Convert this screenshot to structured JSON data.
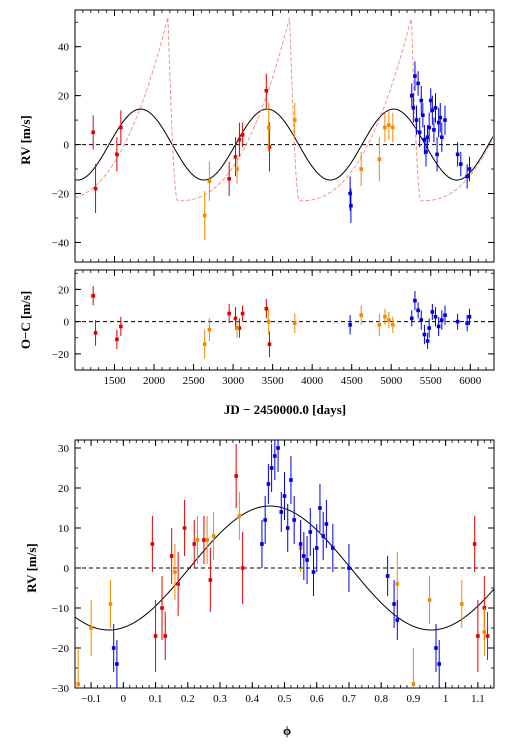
{
  "colors": {
    "red": "#e00000",
    "orange": "#f08a00",
    "blue": "#0000e0",
    "model": "#000000",
    "model2": "#f08a8a"
  },
  "chart_data": [
    {
      "id": "rv-time",
      "type": "scatter",
      "title": "",
      "xlabel": "",
      "ylabel": "RV [m/s]",
      "xlim": [
        1000,
        6300
      ],
      "ylim": [
        -48,
        55
      ],
      "x_ticks": [
        1500,
        2000,
        2500,
        3000,
        3500,
        4000,
        4500,
        5000,
        5500,
        6000
      ],
      "y_ticks": [
        -40,
        -20,
        0,
        20,
        40
      ],
      "tick_labels_x": false,
      "zero_line": "dashed",
      "model_curves": [
        {
          "kind": "sine",
          "amplitude": 14.5,
          "period": 1600,
          "phase_ref": 1830,
          "color": "black",
          "style": "solid"
        },
        {
          "kind": "sawtooth",
          "min": -23,
          "max": 52,
          "period": 1540,
          "peak_at": 2175,
          "color": "pink",
          "style": "dashed"
        }
      ],
      "series": [
        {
          "color": "red",
          "points": [
            [
              1230,
              5,
              7
            ],
            [
              1260,
              -18,
              10
            ],
            [
              1530,
              -4,
              7
            ],
            [
              1580,
              7,
              7
            ],
            [
              2950,
              -14,
              7
            ],
            [
              3030,
              -5,
              8
            ],
            [
              3080,
              2,
              7
            ],
            [
              3120,
              4,
              5
            ],
            [
              3420,
              22,
              7
            ],
            [
              3460,
              -1,
              10
            ]
          ]
        },
        {
          "color": "orange",
          "points": [
            [
              2640,
              -29,
              10
            ],
            [
              2700,
              -15,
              8
            ],
            [
              3050,
              -10,
              6
            ],
            [
              3450,
              7,
              10
            ],
            [
              3780,
              10,
              7
            ],
            [
              4620,
              -10,
              7
            ],
            [
              4850,
              -6,
              9
            ],
            [
              4920,
              7,
              6
            ],
            [
              4970,
              8,
              6
            ],
            [
              5020,
              7,
              6
            ]
          ]
        },
        {
          "color": "blue",
          "points": [
            [
              4480,
              -20,
              7
            ],
            [
              4490,
              -25,
              7
            ],
            [
              5260,
              20,
              5
            ],
            [
              5280,
              15,
              6
            ],
            [
              5300,
              28,
              6
            ],
            [
              5320,
              10,
              6
            ],
            [
              5340,
              25,
              5
            ],
            [
              5360,
              5,
              6
            ],
            [
              5380,
              18,
              6
            ],
            [
              5400,
              12,
              5
            ],
            [
              5420,
              2,
              6
            ],
            [
              5440,
              -3,
              6
            ],
            [
              5460,
              3,
              5
            ],
            [
              5480,
              7,
              6
            ],
            [
              5500,
              18,
              5
            ],
            [
              5520,
              14,
              6
            ],
            [
              5540,
              6,
              5
            ],
            [
              5560,
              15,
              6
            ],
            [
              5580,
              -4,
              7
            ],
            [
              5600,
              9,
              6
            ],
            [
              5620,
              11,
              6
            ],
            [
              5640,
              3,
              6
            ],
            [
              5680,
              10,
              6
            ],
            [
              5840,
              -4,
              5
            ],
            [
              5880,
              -8,
              5
            ],
            [
              5960,
              -13,
              5
            ],
            [
              5990,
              -10,
              5
            ]
          ]
        }
      ]
    },
    {
      "id": "oc-time",
      "type": "scatter",
      "title": "",
      "xlabel": "JD − 2450000.0 [days]",
      "ylabel": "O−C [m/s]",
      "xlim": [
        1000,
        6300
      ],
      "ylim": [
        -30,
        32
      ],
      "x_ticks": [
        1500,
        2000,
        2500,
        3000,
        3500,
        4000,
        4500,
        5000,
        5500,
        6000
      ],
      "y_ticks": [
        -20,
        0,
        20
      ],
      "tick_labels_x": true,
      "zero_line": "dashed",
      "model_curves": [],
      "series": [
        {
          "color": "red",
          "points": [
            [
              1230,
              16,
              6
            ],
            [
              1260,
              -7,
              8
            ],
            [
              1530,
              -11,
              6
            ],
            [
              1580,
              -3,
              6
            ],
            [
              2950,
              5,
              6
            ],
            [
              3030,
              2,
              7
            ],
            [
              3080,
              -4,
              6
            ],
            [
              3120,
              5,
              5
            ],
            [
              3420,
              8,
              6
            ],
            [
              3460,
              -14,
              8
            ]
          ]
        },
        {
          "color": "orange",
          "points": [
            [
              2640,
              -14,
              9
            ],
            [
              2700,
              -5,
              7
            ],
            [
              3050,
              -4,
              6
            ],
            [
              3450,
              0,
              8
            ],
            [
              3780,
              -1,
              6
            ],
            [
              4620,
              4,
              6
            ],
            [
              4850,
              -2,
              7
            ],
            [
              4920,
              3,
              5
            ],
            [
              4970,
              1,
              5
            ],
            [
              5020,
              -2,
              5
            ]
          ]
        },
        {
          "color": "blue",
          "points": [
            [
              4480,
              -2,
              6
            ],
            [
              5260,
              2,
              5
            ],
            [
              5300,
              13,
              6
            ],
            [
              5340,
              7,
              5
            ],
            [
              5380,
              1,
              6
            ],
            [
              5420,
              -8,
              6
            ],
            [
              5460,
              -12,
              5
            ],
            [
              5480,
              -4,
              6
            ],
            [
              5520,
              6,
              5
            ],
            [
              5560,
              3,
              6
            ],
            [
              5600,
              -3,
              6
            ],
            [
              5640,
              1,
              6
            ],
            [
              5680,
              4,
              6
            ],
            [
              5840,
              0,
              5
            ],
            [
              5960,
              -1,
              5
            ],
            [
              5990,
              3,
              5
            ]
          ]
        }
      ]
    },
    {
      "id": "rv-phase",
      "type": "scatter",
      "title": "",
      "xlabel": "ϕ",
      "ylabel": "RV [m/s]",
      "xlim": [
        -0.15,
        1.15
      ],
      "ylim": [
        -30,
        32
      ],
      "x_ticks": [
        -0.1,
        0,
        0.1,
        0.2,
        0.3,
        0.4,
        0.5,
        0.6,
        0.7,
        0.8,
        0.9,
        1,
        1.1
      ],
      "x_tick_labels": [
        "−0.1",
        "0",
        "0.1",
        "0.2",
        "0.3",
        "0.4",
        "0.5",
        "0.6",
        "0.7",
        "0.8",
        "0.9",
        "1",
        "1.1"
      ],
      "y_ticks": [
        -30,
        -20,
        -10,
        0,
        10,
        20,
        30
      ],
      "tick_labels_x": true,
      "zero_line": "dashed",
      "model_curves": [
        {
          "kind": "sine",
          "amplitude": 15.5,
          "period": 1,
          "phase_ref": 0.455,
          "color": "black",
          "style": "solid"
        }
      ],
      "series": [
        {
          "color": "red",
          "points": [
            [
              0.09,
              6,
              7
            ],
            [
              0.1,
              -17,
              9
            ],
            [
              0.12,
              -10,
              8
            ],
            [
              0.13,
              -17,
              6
            ],
            [
              0.15,
              3,
              7
            ],
            [
              0.17,
              -4,
              8
            ],
            [
              0.19,
              10,
              7
            ],
            [
              0.22,
              6,
              6
            ],
            [
              0.25,
              7,
              6
            ],
            [
              0.27,
              -3,
              8
            ],
            [
              0.35,
              23,
              8
            ],
            [
              0.37,
              0,
              9
            ],
            [
              1.09,
              6,
              7
            ],
            [
              1.1,
              -17,
              9
            ],
            [
              1.12,
              -10,
              8
            ],
            [
              1.13,
              -17,
              6
            ]
          ]
        },
        {
          "color": "orange",
          "points": [
            [
              -0.14,
              -29,
              9
            ],
            [
              -0.1,
              -15,
              7
            ],
            [
              -0.04,
              -9,
              6
            ],
            [
              0.16,
              -1,
              7
            ],
            [
              0.23,
              7,
              6
            ],
            [
              0.26,
              7,
              6
            ],
            [
              0.28,
              8,
              6
            ],
            [
              0.36,
              13,
              6
            ],
            [
              0.55,
              5,
              6
            ],
            [
              0.85,
              -4,
              8
            ],
            [
              0.9,
              -29,
              9
            ],
            [
              0.95,
              -8,
              6
            ],
            [
              1.05,
              -9,
              6
            ],
            [
              1.12,
              -16,
              6
            ]
          ]
        },
        {
          "color": "blue",
          "points": [
            [
              -0.16,
              -11,
              6
            ],
            [
              -0.03,
              -20,
              6
            ],
            [
              -0.02,
              -24,
              6
            ],
            [
              0.43,
              6,
              6
            ],
            [
              0.44,
              12,
              6
            ],
            [
              0.45,
              21,
              5
            ],
            [
              0.46,
              25,
              6
            ],
            [
              0.47,
              28,
              6
            ],
            [
              0.48,
              30,
              6
            ],
            [
              0.49,
              14,
              5
            ],
            [
              0.5,
              18,
              6
            ],
            [
              0.51,
              10,
              6
            ],
            [
              0.52,
              22,
              6
            ],
            [
              0.53,
              12,
              6
            ],
            [
              0.55,
              6,
              6
            ],
            [
              0.56,
              3,
              6
            ],
            [
              0.57,
              2,
              6
            ],
            [
              0.58,
              9,
              6
            ],
            [
              0.59,
              -1,
              6
            ],
            [
              0.6,
              5,
              6
            ],
            [
              0.61,
              15,
              6
            ],
            [
              0.62,
              8,
              6
            ],
            [
              0.63,
              11,
              6
            ],
            [
              0.65,
              5,
              6
            ],
            [
              0.7,
              0,
              6
            ],
            [
              0.82,
              -2,
              5
            ],
            [
              0.84,
              -9,
              6
            ],
            [
              0.85,
              -13,
              5
            ],
            [
              0.97,
              -20,
              6
            ],
            [
              0.98,
              -24,
              6
            ]
          ]
        }
      ]
    }
  ]
}
